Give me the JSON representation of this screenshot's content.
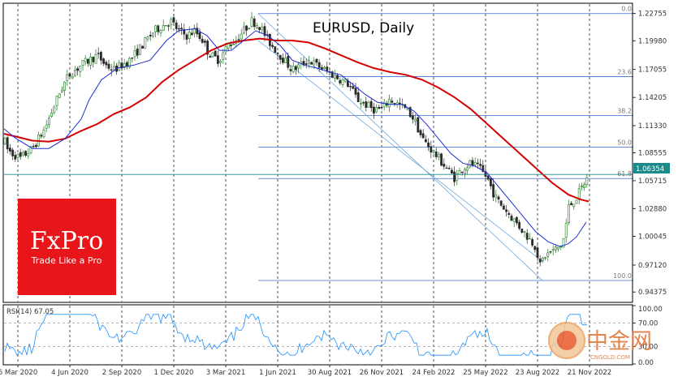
{
  "chart_data": {
    "type": "candlestick",
    "title": "EURUSD, Daily",
    "symbol": "EURUSD",
    "timeframe": "Daily",
    "y_ticks": [
      "1.22755",
      "1.19980",
      "1.17055",
      "1.14205",
      "1.11330",
      "1.08555",
      "1.05715",
      "1.02880",
      "1.00045",
      "0.97120",
      "0.94375"
    ],
    "y_tick_values": [
      1.22755,
      1.1998,
      1.17055,
      1.14205,
      1.1133,
      1.08555,
      1.05715,
      1.0288,
      1.00045,
      0.9712,
      0.94375
    ],
    "ylim": [
      0.934,
      1.2372
    ],
    "x_ticks": [
      "6 Mar 2020",
      "4 Jun 2020",
      "2 Sep 2020",
      "1 Dec 2020",
      "3 Mar 2021",
      "1 Jun 2021",
      "30 Aug 2021",
      "26 Nov 2021",
      "24 Feb 2022",
      "25 May 2022",
      "23 Aug 2022",
      "21 Nov 2022"
    ],
    "current_price": "1.06354",
    "current_price_value": 1.06354,
    "close_path": [
      [
        0,
        1.116
      ],
      [
        8,
        1.09
      ],
      [
        15,
        1.085
      ],
      [
        25,
        1.08
      ],
      [
        40,
        1.09
      ],
      [
        55,
        1.11
      ],
      [
        65,
        1.13
      ],
      [
        75,
        1.15
      ],
      [
        85,
        1.165
      ],
      [
        100,
        1.175
      ],
      [
        110,
        1.18
      ],
      [
        120,
        1.185
      ],
      [
        130,
        1.175
      ],
      [
        140,
        1.17
      ],
      [
        150,
        1.175
      ],
      [
        160,
        1.18
      ],
      [
        170,
        1.19
      ],
      [
        180,
        1.2
      ],
      [
        190,
        1.21
      ],
      [
        200,
        1.215
      ],
      [
        210,
        1.22
      ],
      [
        220,
        1.21
      ],
      [
        230,
        1.205
      ],
      [
        240,
        1.21
      ],
      [
        250,
        1.2
      ],
      [
        255,
        1.19
      ],
      [
        260,
        1.185
      ],
      [
        270,
        1.18
      ],
      [
        280,
        1.195
      ],
      [
        290,
        1.2
      ],
      [
        300,
        1.21
      ],
      [
        310,
        1.22
      ],
      [
        320,
        1.215
      ],
      [
        330,
        1.2
      ],
      [
        340,
        1.19
      ],
      [
        350,
        1.18
      ],
      [
        360,
        1.17
      ],
      [
        370,
        1.175
      ],
      [
        380,
        1.18
      ],
      [
        390,
        1.175
      ],
      [
        400,
        1.17
      ],
      [
        410,
        1.165
      ],
      [
        420,
        1.16
      ],
      [
        430,
        1.155
      ],
      [
        440,
        1.14
      ],
      [
        450,
        1.135
      ],
      [
        460,
        1.13
      ],
      [
        470,
        1.13
      ],
      [
        480,
        1.14
      ],
      [
        490,
        1.135
      ],
      [
        500,
        1.13
      ],
      [
        510,
        1.12
      ],
      [
        520,
        1.1
      ],
      [
        530,
        1.09
      ],
      [
        540,
        1.08
      ],
      [
        550,
        1.07
      ],
      [
        560,
        1.06
      ],
      [
        570,
        1.07
      ],
      [
        580,
        1.075
      ],
      [
        590,
        1.07
      ],
      [
        600,
        1.06
      ],
      [
        610,
        1.04
      ],
      [
        620,
        1.03
      ],
      [
        630,
        1.02
      ],
      [
        640,
        1.01
      ],
      [
        650,
        1.0
      ],
      [
        660,
        0.99
      ],
      [
        665,
        0.97
      ],
      [
        670,
        0.98
      ],
      [
        680,
        0.985
      ],
      [
        690,
        0.99
      ],
      [
        695,
        1.0
      ],
      [
        700,
        1.03
      ],
      [
        710,
        1.04
      ],
      [
        720,
        1.055
      ],
      [
        725,
        1.063
      ]
    ],
    "ma_blue_path": [
      [
        5,
        1.11
      ],
      [
        20,
        1.1
      ],
      [
        40,
        1.09
      ],
      [
        60,
        1.09
      ],
      [
        80,
        1.1
      ],
      [
        100,
        1.12
      ],
      [
        110,
        1.14
      ],
      [
        125,
        1.16
      ],
      [
        145,
        1.172
      ],
      [
        165,
        1.175
      ],
      [
        185,
        1.18
      ],
      [
        205,
        1.2
      ],
      [
        220,
        1.21
      ],
      [
        240,
        1.212
      ],
      [
        255,
        1.205
      ],
      [
        270,
        1.19
      ],
      [
        285,
        1.19
      ],
      [
        300,
        1.2
      ],
      [
        315,
        1.21
      ],
      [
        330,
        1.205
      ],
      [
        345,
        1.195
      ],
      [
        360,
        1.18
      ],
      [
        375,
        1.175
      ],
      [
        390,
        1.172
      ],
      [
        405,
        1.168
      ],
      [
        420,
        1.165
      ],
      [
        435,
        1.155
      ],
      [
        450,
        1.145
      ],
      [
        465,
        1.137
      ],
      [
        480,
        1.135
      ],
      [
        495,
        1.135
      ],
      [
        510,
        1.128
      ],
      [
        525,
        1.115
      ],
      [
        540,
        1.1
      ],
      [
        555,
        1.085
      ],
      [
        570,
        1.075
      ],
      [
        585,
        1.072
      ],
      [
        600,
        1.065
      ],
      [
        615,
        1.05
      ],
      [
        630,
        1.035
      ],
      [
        645,
        1.02
      ],
      [
        660,
        1.005
      ],
      [
        675,
        0.995
      ],
      [
        690,
        0.99
      ],
      [
        700,
        0.993
      ],
      [
        710,
        1.0
      ],
      [
        718,
        1.01
      ],
      [
        722,
        1.015
      ]
    ],
    "ma_red_path": [
      [
        5,
        1.105
      ],
      [
        20,
        1.102
      ],
      [
        40,
        1.098
      ],
      [
        60,
        1.097
      ],
      [
        80,
        1.1
      ],
      [
        100,
        1.108
      ],
      [
        120,
        1.115
      ],
      [
        140,
        1.125
      ],
      [
        160,
        1.132
      ],
      [
        180,
        1.142
      ],
      [
        200,
        1.158
      ],
      [
        220,
        1.17
      ],
      [
        240,
        1.18
      ],
      [
        260,
        1.19
      ],
      [
        280,
        1.197
      ],
      [
        300,
        1.2
      ],
      [
        320,
        1.202
      ],
      [
        340,
        1.2
      ],
      [
        360,
        1.2
      ],
      [
        380,
        1.198
      ],
      [
        400,
        1.192
      ],
      [
        420,
        1.185
      ],
      [
        440,
        1.178
      ],
      [
        460,
        1.172
      ],
      [
        480,
        1.168
      ],
      [
        500,
        1.165
      ],
      [
        520,
        1.16
      ],
      [
        540,
        1.152
      ],
      [
        560,
        1.142
      ],
      [
        580,
        1.13
      ],
      [
        600,
        1.115
      ],
      [
        620,
        1.1
      ],
      [
        640,
        1.085
      ],
      [
        660,
        1.07
      ],
      [
        680,
        1.055
      ],
      [
        700,
        1.043
      ],
      [
        715,
        1.038
      ],
      [
        725,
        1.036
      ]
    ],
    "channel_lines": [
      [
        [
          318,
          1.2275
        ],
        [
          668,
          0.9555
        ]
      ],
      [
        [
          318,
          1.2
        ],
        [
          668,
          0.975
        ]
      ]
    ],
    "fibonacci": {
      "x_start": 318,
      "x_end": 780,
      "levels": [
        {
          "label": "0.0",
          "value": 1.2275
        },
        {
          "label": "23.6",
          "value": 1.1633
        },
        {
          "label": "38.2",
          "value": 1.1236
        },
        {
          "label": "50.0",
          "value": 1.0915
        },
        {
          "label": "61.8",
          "value": 1.0594
        },
        {
          "label": "100.0",
          "value": 0.9555
        }
      ]
    },
    "rsi": {
      "label": "RSI(14) 67.05",
      "value": 67.05,
      "ticks": [
        "100.00",
        "70.00",
        "30.00",
        "0.00"
      ],
      "tick_values": [
        100,
        70,
        30,
        0
      ],
      "ylim": [
        0,
        100
      ]
    },
    "colors": {
      "grid": "#000000",
      "bull_candle": "#1a7a1a",
      "bear_candle": "#2a2a2a",
      "ma_blue": "#1c2bd6",
      "ma_red": "#d40000",
      "channel": "#6fa8dc",
      "fibo": "#3a6fd0",
      "price_line": "#1a8a8a",
      "rsi_line": "#1e90ff"
    }
  },
  "logo": {
    "brand": "FxPro",
    "tagline": "Trade Like a Pro",
    "background": "#e8161a"
  },
  "watermark": {
    "cn": "中金网",
    "en": "CNGOLD.COM"
  }
}
